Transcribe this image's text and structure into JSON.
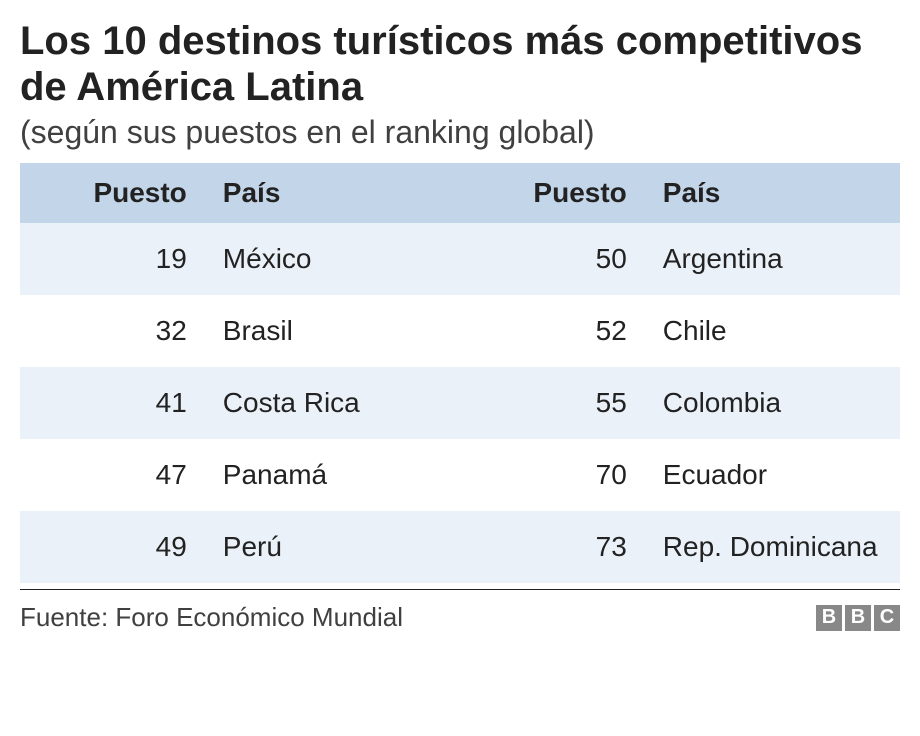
{
  "title": "Los 10 destinos turísticos más competitivos de América Latina",
  "subtitle": "(según sus puestos en el ranking global)",
  "table": {
    "type": "table",
    "columns": [
      "Puesto",
      "País",
      "Puesto",
      "País"
    ],
    "column_align": [
      "right",
      "left",
      "right",
      "left"
    ],
    "header_bg": "#c3d6e9",
    "row_bg_odd": "#eaf1f9",
    "row_bg_even": "#ffffff",
    "header_fontsize": 28,
    "cell_fontsize": 28,
    "text_color": "#222222",
    "rows": [
      [
        "19",
        "México",
        "50",
        "Argentina"
      ],
      [
        "32",
        "Brasil",
        "52",
        "Chile"
      ],
      [
        "41",
        "Costa Rica",
        "55",
        "Colombia"
      ],
      [
        "47",
        "Panamá",
        "70",
        "Ecuador"
      ],
      [
        "49",
        "Perú",
        "73",
        "Rep. Dominicana"
      ]
    ]
  },
  "source_label": "Fuente: Foro Económico Mundial",
  "logo": {
    "letters": [
      "B",
      "B",
      "C"
    ],
    "box_bg": "#888888",
    "box_fg": "#ffffff"
  },
  "colors": {
    "background": "#ffffff",
    "title": "#222222",
    "subtitle": "#404040",
    "border": "#222222"
  },
  "typography": {
    "title_fontsize": 40,
    "title_weight": 700,
    "subtitle_fontsize": 32,
    "subtitle_weight": 400,
    "source_fontsize": 26
  }
}
